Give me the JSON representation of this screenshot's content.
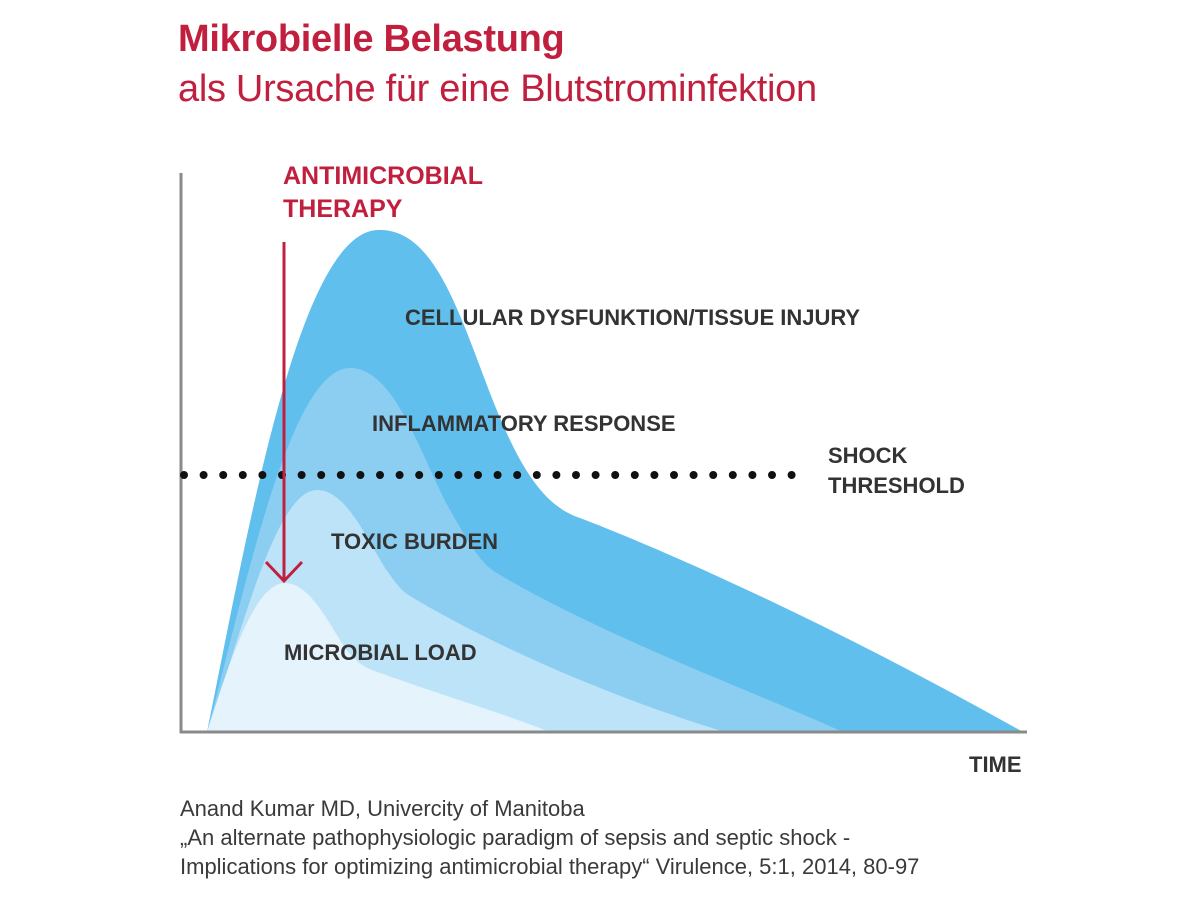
{
  "title": "Mikrobielle Belastung",
  "subtitle": "als Ursache für eine Blutstrominfektion",
  "intervention": {
    "line1": "ANTIMICROBIAL",
    "line2": "THERAPY"
  },
  "curves": [
    {
      "label": "CELLULAR DYSFUNKTION/TISSUE INJURY",
      "color": "#60bfed"
    },
    {
      "label": "INFLAMMATORY RESPONSE",
      "color": "#8ccef2"
    },
    {
      "label": "TOXIC BURDEN",
      "color": "#bde3f8"
    },
    {
      "label": "MICROBIAL LOAD",
      "color": "#e4f3fc"
    }
  ],
  "threshold": {
    "line1": "SHOCK",
    "line2": "THRESHOLD"
  },
  "x_axis_label": "TIME",
  "source": {
    "line1": "Anand Kumar MD, Univercity of Manitoba",
    "line2": "„An alternate pathophysiologic paradigm of sepsis and septic shock -",
    "line3": "Implications for optimizing antimicrobial therapy“ Virulence, 5:1, 2014, 80-97"
  },
  "colors": {
    "accent": "#c0203e",
    "text": "#333333",
    "axis": "#8a8a8a",
    "dots": "#111111"
  }
}
